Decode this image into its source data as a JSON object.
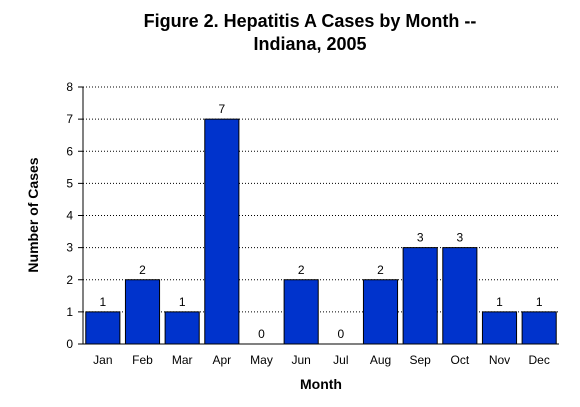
{
  "chart_data": {
    "type": "bar",
    "title_lines": [
      "Figure 2. Hepatitis A Cases by Month --",
      "Indiana, 2005"
    ],
    "xlabel": "Month",
    "ylabel": "Number of Cases",
    "categories": [
      "Jan",
      "Feb",
      "Mar",
      "Apr",
      "May",
      "Jun",
      "Jul",
      "Aug",
      "Sep",
      "Oct",
      "Nov",
      "Dec"
    ],
    "values": [
      1,
      2,
      1,
      7,
      0,
      2,
      0,
      2,
      3,
      3,
      1,
      1
    ],
    "data_labels": [
      "1",
      "2",
      "1",
      "7",
      "0",
      "2",
      "0",
      "2",
      "3",
      "3",
      "1",
      "1"
    ],
    "ylim": [
      0,
      8
    ],
    "yticks": [
      "0",
      "1",
      "2",
      "3",
      "4",
      "5",
      "6",
      "7",
      "8"
    ],
    "grid": "horizontal-dotted",
    "bar_color": "#0033cc"
  }
}
